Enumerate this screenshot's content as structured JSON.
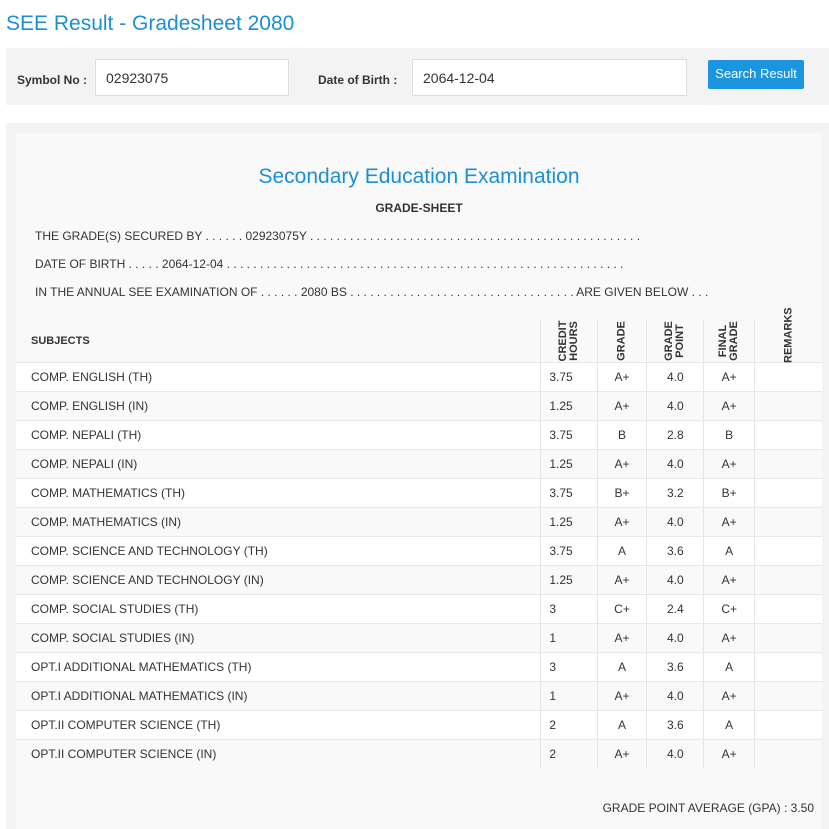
{
  "header": {
    "title": "SEE Result - Gradesheet 2080"
  },
  "form": {
    "symbol_label": "Symbol No :",
    "symbol_value": "02923075",
    "dob_label": "Date of Birth :",
    "dob_value": "2064-12-04",
    "button": "Search Result"
  },
  "sheet": {
    "title": "Secondary Education Examination",
    "subtitle": "GRADE-SHEET",
    "lines": [
      "THE GRADE(S) SECURED BY . . . . . . 02923075Y . . . . . . . . . . . . . . . . . . . . . . . . . . . . . . . . . . . . . . . . . . . . . . . . . .",
      "DATE OF BIRTH . . . . . 2064-12-04 . . . . . . . . . . . . . . . . . . . . . . . . . . . . . . . . . . . . . . . . . . . . . . . . . . . . . . . . . . . .",
      "IN THE ANNUAL SEE EXAMINATION OF . . . . . . 2080 BS . . . . . . . . . . . . . . . . . . . . . . . . . . . . . . . . . . ARE GIVEN BELOW . . ."
    ],
    "gpa": "GRADE POINT AVERAGE (GPA) : 3.50"
  },
  "table": {
    "columns": [
      "SUBJECTS",
      "CREDIT HOURS",
      "GRADE",
      "GRADE POINT",
      "FINAL GRADE",
      "REMARKS"
    ],
    "rows": [
      [
        "COMP. ENGLISH (TH)",
        "3.75",
        "A+",
        "4.0",
        "A+"
      ],
      [
        "COMP. ENGLISH (IN)",
        "1.25",
        "A+",
        "4.0",
        "A+"
      ],
      [
        "COMP. NEPALI (TH)",
        "3.75",
        "B",
        "2.8",
        "B"
      ],
      [
        "COMP. NEPALI (IN)",
        "1.25",
        "A+",
        "4.0",
        "A+"
      ],
      [
        "COMP. MATHEMATICS (TH)",
        "3.75",
        "B+",
        "3.2",
        "B+"
      ],
      [
        "COMP. MATHEMATICS (IN)",
        "1.25",
        "A+",
        "4.0",
        "A+"
      ],
      [
        "COMP. SCIENCE AND TECHNOLOGY (TH)",
        "3.75",
        "A",
        "3.6",
        "A"
      ],
      [
        "COMP. SCIENCE AND TECHNOLOGY (IN)",
        "1.25",
        "A+",
        "4.0",
        "A+"
      ],
      [
        "COMP. SOCIAL STUDIES (TH)",
        "3",
        "C+",
        "2.4",
        "C+"
      ],
      [
        "COMP. SOCIAL STUDIES (IN)",
        "1",
        "A+",
        "4.0",
        "A+"
      ],
      [
        "OPT.I ADDITIONAL MATHEMATICS (TH)",
        "3",
        "A",
        "3.6",
        "A"
      ],
      [
        "OPT.I ADDITIONAL MATHEMATICS (IN)",
        "1",
        "A+",
        "4.0",
        "A+"
      ],
      [
        "OPT.II COMPUTER SCIENCE (TH)",
        "2",
        "A",
        "3.6",
        "A"
      ],
      [
        "OPT.II COMPUTER SCIENCE (IN)",
        "2",
        "A+",
        "4.0",
        "A+"
      ]
    ]
  }
}
